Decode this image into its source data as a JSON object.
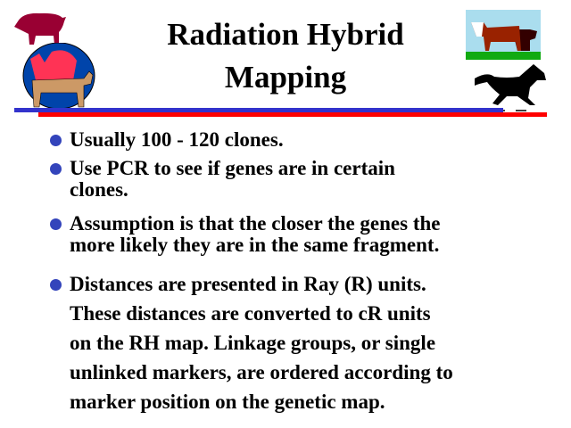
{
  "title": {
    "line1": "Radiation Hybrid",
    "line2": "Mapping"
  },
  "bullets": [
    {
      "lines": [
        "Usually 100 - 120 clones."
      ]
    },
    {
      "lines": [
        "Use PCR to see if genes are in certain",
        "clones."
      ]
    },
    {
      "lines": [
        "Assumption is that the closer the genes the",
        "more likely they are in the same fragment."
      ]
    },
    {
      "lines": [
        "Distances are presented in Ray (R) units.",
        "These distances are converted to cR units",
        "on the RH map. Linkage groups, or single",
        "unlinked markers, are ordered according to",
        "marker position on the genetic map."
      ]
    }
  ],
  "colors": {
    "bullet": "#3344bb",
    "rule_top": "#3333cc",
    "rule_bottom": "#ff0000"
  },
  "images": [
    "pig-clipart",
    "rooster-goat-clipart",
    "cattle-clipart",
    "horse-clipart"
  ]
}
